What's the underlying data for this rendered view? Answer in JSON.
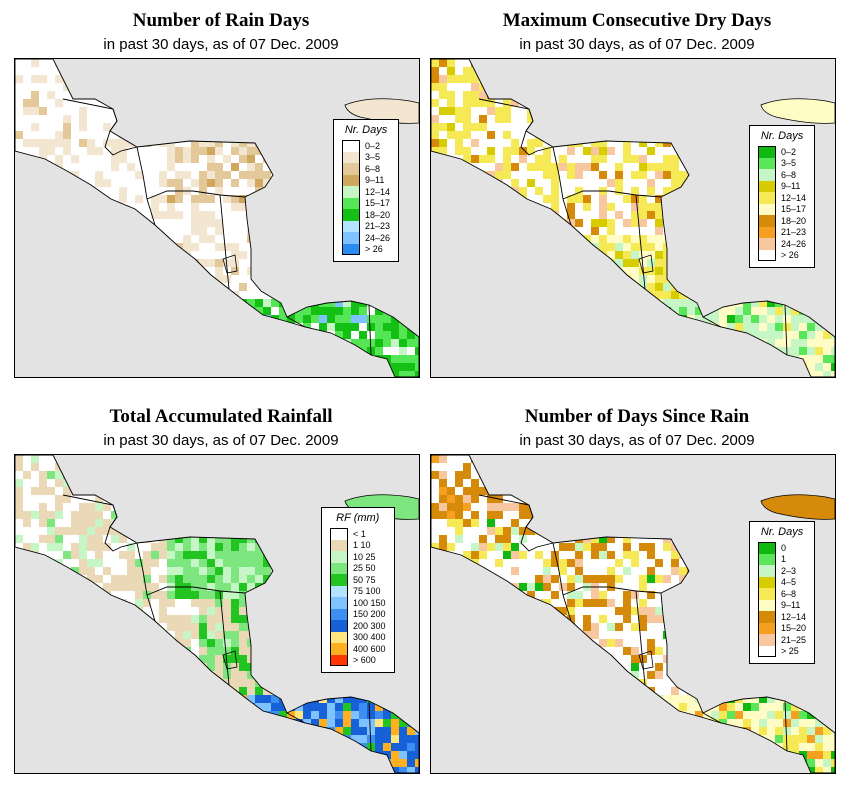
{
  "panels": [
    {
      "id": "rain-days",
      "title": "Number of Rain Days",
      "subtitle": "in past 30 days, as of  07 Dec. 2009",
      "legend_title": "Nr. Days",
      "legend": [
        {
          "label": "0–2",
          "color": "#ffffff"
        },
        {
          "label": "3–5",
          "color": "#f2e6d0"
        },
        {
          "label": "6–8",
          "color": "#e3c99a"
        },
        {
          "label": "9–11",
          "color": "#cfa85e"
        },
        {
          "label": "12–14",
          "color": "#c6f5c6"
        },
        {
          "label": "15–17",
          "color": "#55e655"
        },
        {
          "label": "18–20",
          "color": "#14c014"
        },
        {
          "label": "21–23",
          "color": "#b3e4ff"
        },
        {
          "label": "24–26",
          "color": "#7ec2ff"
        },
        {
          "label": "> 26",
          "color": "#2a8cf0"
        }
      ]
    },
    {
      "id": "dry-days",
      "title": "Maximum Consecutive Dry Days",
      "subtitle": "in past 30 days, as of  07 Dec. 2009",
      "legend_title": "Nr. Days",
      "legend": [
        {
          "label": "0–2",
          "color": "#12b812"
        },
        {
          "label": "3–5",
          "color": "#5ae65a"
        },
        {
          "label": "6–8",
          "color": "#c6f5c6"
        },
        {
          "label": "9–11",
          "color": "#d6cc00"
        },
        {
          "label": "12–14",
          "color": "#f5ea55"
        },
        {
          "label": "15–17",
          "color": "#fffcc6"
        },
        {
          "label": "18–20",
          "color": "#d68a0a"
        },
        {
          "label": "21–23",
          "color": "#f5a020"
        },
        {
          "label": "24–26",
          "color": "#f7c8a0"
        },
        {
          "label": "> 26",
          "color": "#ffffff"
        }
      ]
    },
    {
      "id": "rainfall",
      "title": "Total Accumulated Rainfall",
      "subtitle": "in past 30 days, as of  07 Dec. 2009",
      "legend_title": "RF (mm)",
      "legend": [
        {
          "label": "< 1",
          "color": "#ffffff"
        },
        {
          "label": "1   10",
          "color": "#ead8b6"
        },
        {
          "label": "10   25",
          "color": "#c6f5c6"
        },
        {
          "label": "25   50",
          "color": "#7ee67e"
        },
        {
          "label": "50   75",
          "color": "#22c422"
        },
        {
          "label": "75   100",
          "color": "#b3e4ff"
        },
        {
          "label": "100   150",
          "color": "#7ec2ff"
        },
        {
          "label": "150   200",
          "color": "#3c8ef0"
        },
        {
          "label": "200   300",
          "color": "#1660d8"
        },
        {
          "label": "300   400",
          "color": "#ffe680"
        },
        {
          "label": "400   600",
          "color": "#ffb020"
        },
        {
          "label": "> 600",
          "color": "#ff3800"
        }
      ]
    },
    {
      "id": "since-rain",
      "title": "Number of Days Since Rain",
      "subtitle": "in past 30 days, as of  07 Dec. 2009",
      "legend_title": "Nr. Days",
      "legend": [
        {
          "label": "0",
          "color": "#12b812"
        },
        {
          "label": "1",
          "color": "#5ae65a"
        },
        {
          "label": "2–3",
          "color": "#c6f5c6"
        },
        {
          "label": "4–5",
          "color": "#d6cc00"
        },
        {
          "label": "6–8",
          "color": "#f5ea55"
        },
        {
          "label": "9–11",
          "color": "#fffcc6"
        },
        {
          "label": "12–14",
          "color": "#d68a0a"
        },
        {
          "label": "15–20",
          "color": "#f5a020"
        },
        {
          "label": "21–25",
          "color": "#f7c8a0"
        },
        {
          "label": "> 25",
          "color": "#ffffff"
        }
      ]
    }
  ],
  "map_colors": {
    "background": "#e3e3e3",
    "land_default": "#ffffff",
    "border": "#000000"
  }
}
